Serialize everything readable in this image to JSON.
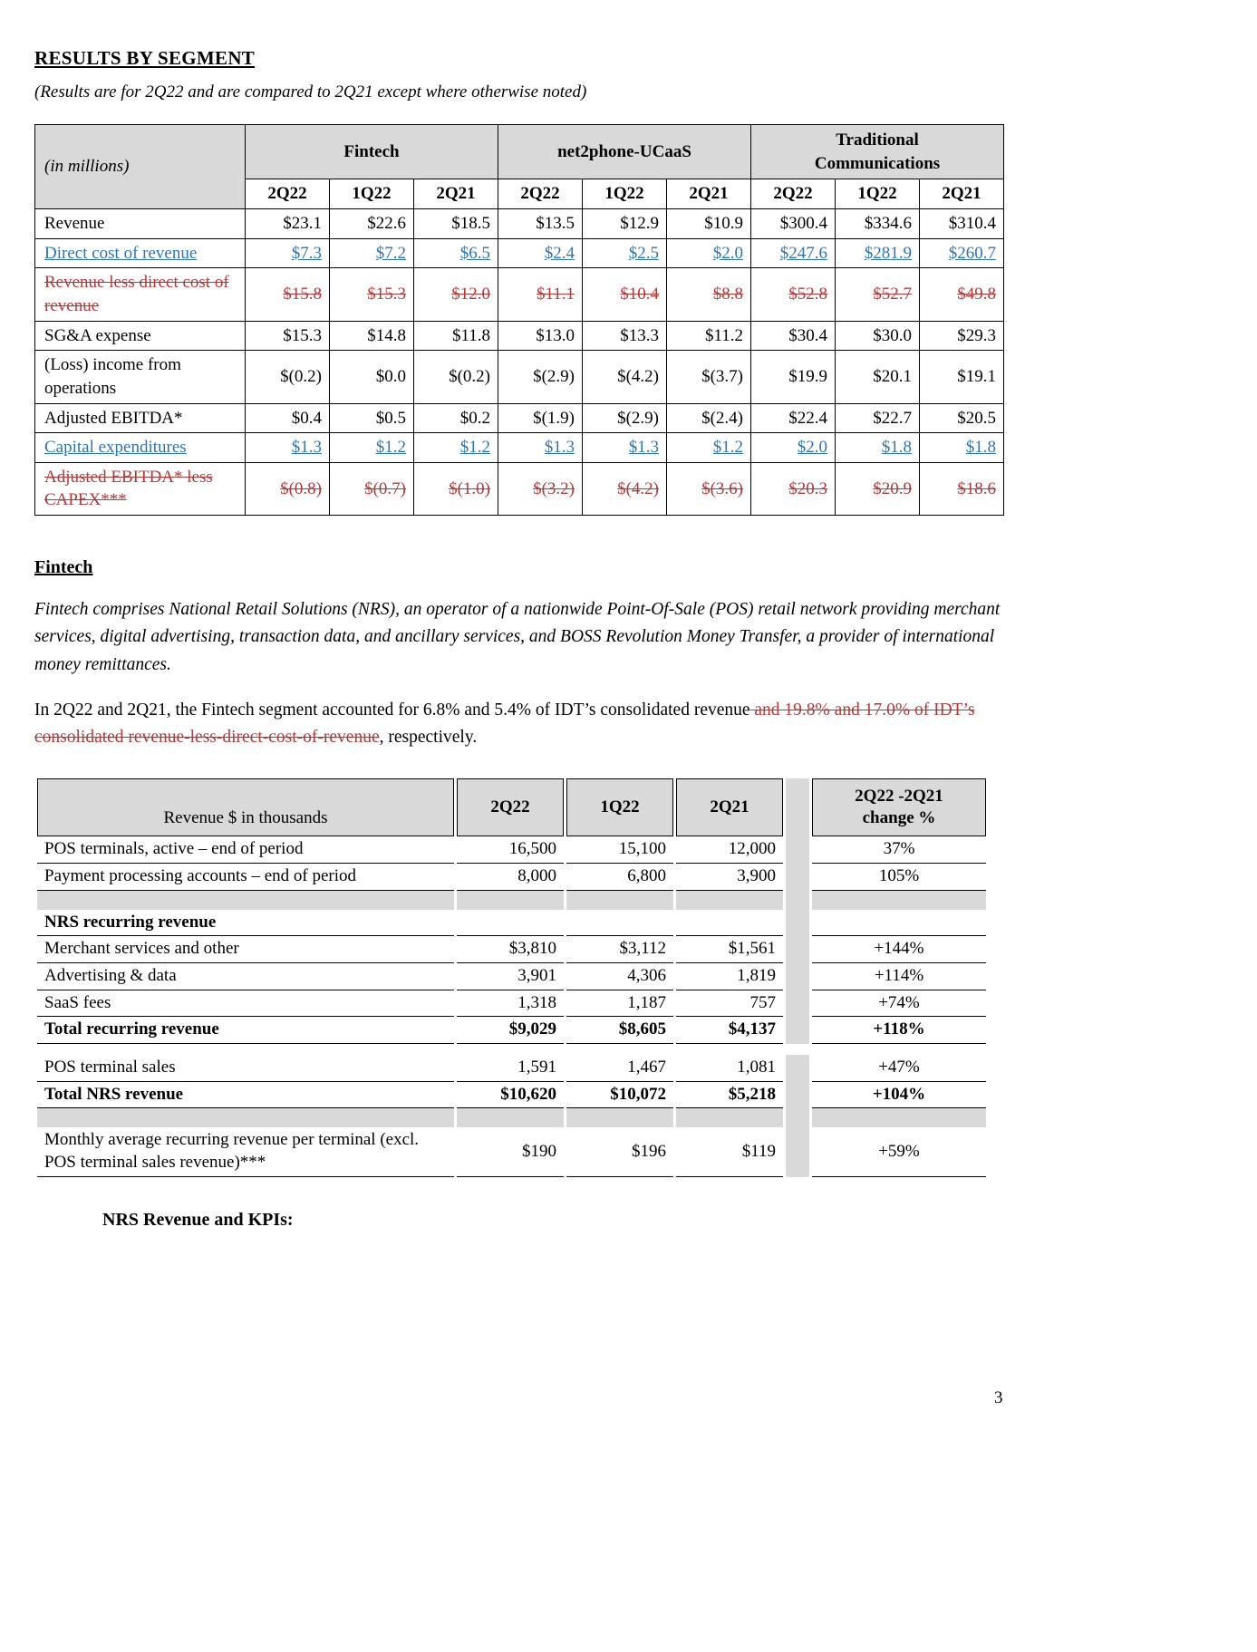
{
  "page": {
    "title": "RESULTS BY SEGMENT",
    "subtitle": "(Results are for 2Q22 and are compared to 2Q21 except where otherwise noted)",
    "page_number": "3"
  },
  "colors": {
    "inserted": "#2e74b5",
    "deleted": "#b03a3a",
    "header_gray": "#d9d9d9"
  },
  "segment_table": {
    "corner_label": "(in millions)",
    "groups": [
      "Fintech",
      "net2phone-UCaaS",
      "Traditional Communications"
    ],
    "quarters": [
      "2Q22",
      "1Q22",
      "2Q21"
    ],
    "rows": [
      {
        "label": "Revenue",
        "style": "normal",
        "values": [
          "$23.1",
          "$22.6",
          "$18.5",
          "$13.5",
          "$12.9",
          "$10.9",
          "$300.4",
          "$334.6",
          "$310.4"
        ]
      },
      {
        "label": "Direct cost of revenue",
        "style": "inserted",
        "values": [
          "$7.3",
          "$7.2",
          "$6.5",
          "$2.4",
          "$2.5",
          "$2.0",
          "$247.6",
          "$281.9",
          "$260.7"
        ]
      },
      {
        "label": "Revenue less direct cost of revenue",
        "style": "deleted",
        "values": [
          "$15.8",
          "$15.3",
          "$12.0",
          "$11.1",
          "$10.4",
          "$8.8",
          "$52.8",
          "$52.7",
          "$49.8"
        ]
      },
      {
        "label": "SG&A expense",
        "style": "normal",
        "values": [
          "$15.3",
          "$14.8",
          "$11.8",
          "$13.0",
          "$13.3",
          "$11.2",
          "$30.4",
          "$30.0",
          "$29.3"
        ]
      },
      {
        "label": "(Loss) income from operations",
        "style": "normal",
        "values": [
          "$(0.2)",
          "$0.0",
          "$(0.2)",
          "$(2.9)",
          "$(4.2)",
          "$(3.7)",
          "$19.9",
          "$20.1",
          "$19.1"
        ]
      },
      {
        "label": "Adjusted EBITDA*",
        "style": "normal",
        "values": [
          "$0.4",
          "$0.5",
          "$0.2",
          "$(1.9)",
          "$(2.9)",
          "$(2.4)",
          "$22.4",
          "$22.7",
          "$20.5"
        ]
      },
      {
        "label": "Capital expenditures",
        "style": "inserted",
        "values": [
          "$1.3",
          "$1.2",
          "$1.2",
          "$1.3",
          "$1.3",
          "$1.2",
          "$2.0",
          "$1.8",
          "$1.8"
        ]
      },
      {
        "label": "Adjusted EBITDA* less CAPEX***",
        "style": "deleted",
        "values": [
          "$(0.8)",
          "$(0.7)",
          "$(1.0)",
          "$(3.2)",
          "$(4.2)",
          "$(3.6)",
          "$20.3",
          "$20.9",
          "$18.6"
        ]
      }
    ]
  },
  "fintech_section": {
    "heading": "Fintech",
    "description": "Fintech comprises National Retail Solutions (NRS), an operator of a nationwide Point-Of-Sale (POS) retail network providing merchant services, digital advertising, transaction data, and ancillary services, and BOSS Revolution Money Transfer, a provider of international money remittances.",
    "revenue_paragraph": {
      "before": "In 2Q22 and 2Q21, the Fintech segment accounted for 6.8% and 5.4% of IDT’s consolidated revenue",
      "deleted": " and 19.8% and 17.0% of IDT’s consolidated revenue-less-direct-cost-of-revenue",
      "after": ", respectively."
    }
  },
  "nrs_table": {
    "header_label": "Revenue $ in thousands",
    "quarters": [
      "2Q22",
      "1Q22",
      "2Q21"
    ],
    "change_header_line1": "2Q22 -2Q21",
    "change_header_line2": "change %",
    "rows": [
      {
        "type": "data",
        "label": "POS terminals, active – end of period",
        "values": [
          "16,500",
          "15,100",
          "12,000"
        ],
        "change": "37%"
      },
      {
        "type": "data",
        "label": "Payment processing accounts – end of period",
        "values": [
          "8,000",
          "6,800",
          "3,900"
        ],
        "change": "105%"
      },
      {
        "type": "spacer"
      },
      {
        "type": "group",
        "label": "NRS recurring revenue"
      },
      {
        "type": "data",
        "label": "Merchant services and other",
        "values": [
          "$3,810",
          "$3,112",
          "$1,561"
        ],
        "change": "+144%"
      },
      {
        "type": "data",
        "label": "Advertising & data",
        "values": [
          "3,901",
          "4,306",
          "1,819"
        ],
        "change": "+114%"
      },
      {
        "type": "data",
        "label": "SaaS fees",
        "values": [
          "1,318",
          "1,187",
          "757"
        ],
        "change": "+74%"
      },
      {
        "type": "total",
        "label": "Total recurring revenue",
        "values": [
          "$9,029",
          "$8,605",
          "$4,137"
        ],
        "change": "+118%"
      },
      {
        "type": "thin"
      },
      {
        "type": "data",
        "label": "POS terminal sales",
        "values": [
          "1,591",
          "1,467",
          "1,081"
        ],
        "change": "+47%"
      },
      {
        "type": "total",
        "label": "Total NRS revenue",
        "values": [
          "$10,620",
          "$10,072",
          "$5,218"
        ],
        "change": "+104%"
      },
      {
        "type": "spacer"
      },
      {
        "type": "data",
        "label": "Monthly average recurring revenue per terminal (excl. POS terminal sales revenue)***",
        "values": [
          "$190",
          "$196",
          "$119"
        ],
        "change": "+59%"
      }
    ]
  },
  "nrs_caption": "NRS Revenue and KPIs:"
}
